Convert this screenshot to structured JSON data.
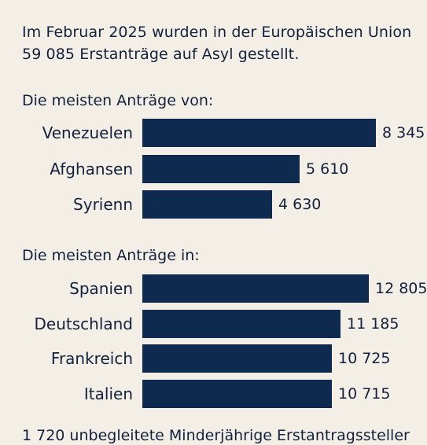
{
  "intro": {
    "line1": "Im Februar 2025 wurden in der Europäischen Union",
    "line2": "59 085 Erstanträge auf Asyl gestellt."
  },
  "chart_data": [
    {
      "type": "bar",
      "orientation": "horizontal",
      "title": "Die meisten Anträge von:",
      "categories": [
        "Venezuelen",
        "Afghansen",
        "Syrienn"
      ],
      "values": [
        8345,
        5610,
        4630
      ],
      "value_labels": [
        "8 345",
        "5 610",
        "4 630"
      ],
      "bar_color": "#0e2a4f"
    },
    {
      "type": "bar",
      "orientation": "horizontal",
      "title": "Die meisten Anträge in:",
      "categories": [
        "Spanien",
        "Deutschland",
        "Frankreich",
        "Italien"
      ],
      "values": [
        12805,
        11185,
        10725,
        10715
      ],
      "value_labels": [
        "12 805",
        "11 185",
        "10 725",
        "10 715"
      ],
      "bar_color": "#0e2a4f"
    }
  ],
  "footer": {
    "text": "1 720 unbegleitete Minderjährige Erstantragssteller"
  }
}
